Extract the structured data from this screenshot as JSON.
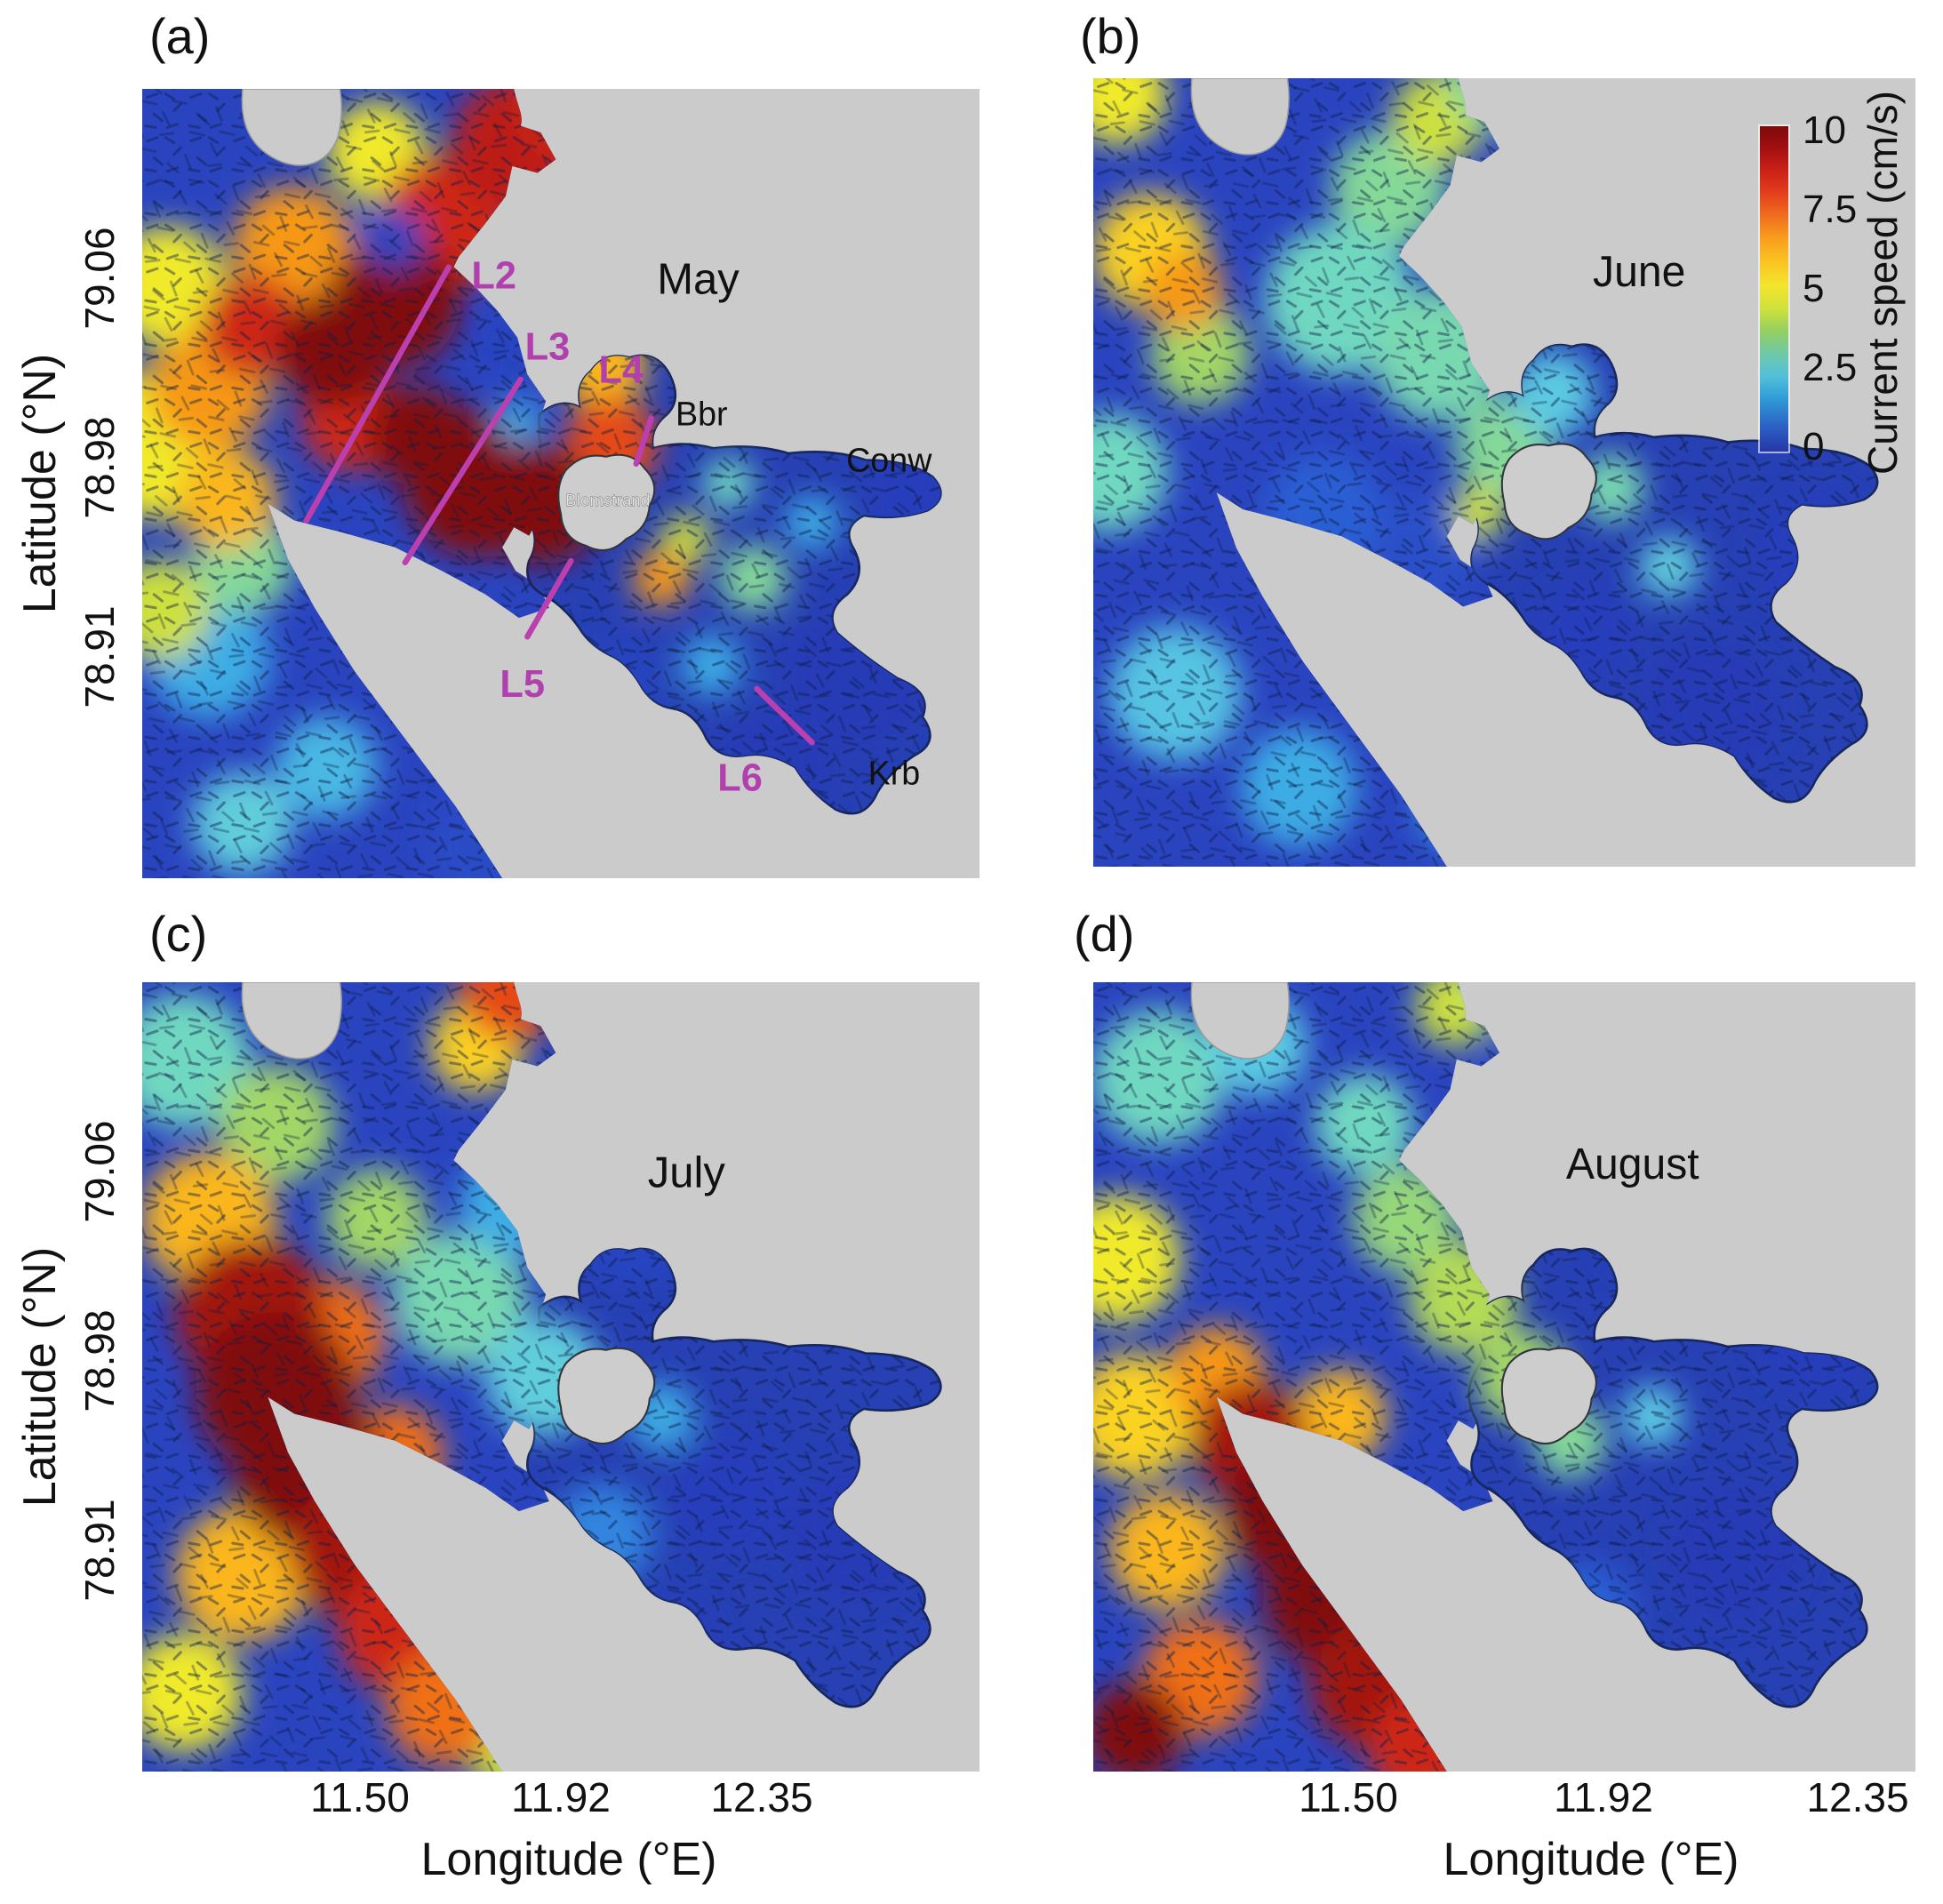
{
  "figure": {
    "panels": [
      {
        "tag": "(a)",
        "month": "May"
      },
      {
        "tag": "(b)",
        "month": "June"
      },
      {
        "tag": "(c)",
        "month": "July"
      },
      {
        "tag": "(d)",
        "month": "August"
      }
    ]
  },
  "axes": {
    "y_label": "Latitude (°N)",
    "y_ticks": [
      "79.06",
      "78.98",
      "78.91"
    ],
    "x_label": "Longitude (°E)",
    "x_ticks": [
      "11.50",
      "11.92",
      "12.35"
    ]
  },
  "colorbar": {
    "label": "Current speed (cm/s)",
    "ticks": [
      "10",
      "7.5",
      "5",
      "2.5",
      "0"
    ]
  },
  "annotations": {
    "transects": [
      "L2",
      "L3",
      "L4",
      "L5",
      "L6"
    ],
    "places": [
      "Bbr",
      "Conw",
      "Krb",
      "Blomstrand"
    ]
  },
  "chart_data": {
    "type": "heatmap",
    "subtype": "vector-current-speed-maps",
    "colormap": "jet",
    "value_label": "Current speed (cm/s)",
    "value_range": [
      0,
      10
    ],
    "colorbar_ticks": [
      10,
      7.5,
      5,
      2.5,
      0
    ],
    "x_axis": {
      "label": "Longitude (°E)",
      "ticks": [
        11.5,
        11.92,
        12.35
      ]
    },
    "y_axis": {
      "label": "Latitude (°N)",
      "ticks": [
        79.06,
        78.98,
        78.91
      ]
    },
    "legend_position": "top-right of panel (b)",
    "panels": [
      {
        "id": "a",
        "month": "May",
        "transects": [
          {
            "label": "L2",
            "x1": 0.366,
            "y1": 0.226,
            "x2": 0.196,
            "y2": 0.547,
            "lx": 0.42,
            "ly": 0.253
          },
          {
            "label": "L3",
            "x1": 0.452,
            "y1": 0.368,
            "x2": 0.314,
            "y2": 0.6,
            "lx": 0.484,
            "ly": 0.343
          },
          {
            "label": "L4",
            "x1": 0.608,
            "y1": 0.417,
            "x2": 0.59,
            "y2": 0.475,
            "lx": 0.572,
            "ly": 0.372
          },
          {
            "label": "L5",
            "x1": 0.512,
            "y1": 0.598,
            "x2": 0.46,
            "y2": 0.694,
            "lx": 0.454,
            "ly": 0.77
          },
          {
            "label": "L6",
            "x1": 0.734,
            "y1": 0.76,
            "x2": 0.8,
            "y2": 0.828,
            "lx": 0.714,
            "ly": 0.889
          }
        ],
        "places": [
          {
            "label": "Bbr",
            "x": 0.668,
            "y": 0.426,
            "kind": "place"
          },
          {
            "label": "Conw",
            "x": 0.892,
            "y": 0.485,
            "kind": "place"
          },
          {
            "label": "Krb",
            "x": 0.898,
            "y": 0.881,
            "kind": "place"
          },
          {
            "label": "Blomstrand",
            "x": 0.556,
            "y": 0.528,
            "kind": "island"
          }
        ],
        "hotspots": [
          {
            "x": 0.55,
            "y": 0.12,
            "r": 34,
            "v": 1
          },
          {
            "x": 0.48,
            "y": 0.28,
            "r": 26,
            "v": 1.2
          },
          {
            "x": 0.85,
            "y": 0.75,
            "r": 42,
            "v": 0.8
          },
          {
            "x": 0.75,
            "y": 0.87,
            "r": 36,
            "v": 0.8
          },
          {
            "x": 0.93,
            "y": 0.52,
            "r": 32,
            "v": 1
          },
          {
            "x": 0.42,
            "y": 0.96,
            "r": 40,
            "v": 1.4
          },
          {
            "x": 0.56,
            "y": 0.76,
            "r": 30,
            "v": 1.2
          },
          {
            "x": 0.08,
            "y": 0.72,
            "r": 36,
            "v": 3
          },
          {
            "x": 0.22,
            "y": 0.86,
            "r": 30,
            "v": 3.2
          },
          {
            "x": 0.12,
            "y": 0.93,
            "r": 30,
            "v": 3.6
          },
          {
            "x": 0.8,
            "y": 0.55,
            "r": 16,
            "v": 3
          },
          {
            "x": 0.68,
            "y": 0.73,
            "r": 18,
            "v": 3
          },
          {
            "x": 0.12,
            "y": 0.6,
            "r": 30,
            "v": 4.5
          },
          {
            "x": 0.73,
            "y": 0.62,
            "r": 20,
            "v": 4.5
          },
          {
            "x": 0.7,
            "y": 0.5,
            "r": 15,
            "v": 4
          },
          {
            "x": 0.6,
            "y": 0.18,
            "r": 22,
            "v": 4
          },
          {
            "x": 0.02,
            "y": 0.45,
            "r": 45,
            "v": 6
          },
          {
            "x": 0.03,
            "y": 0.25,
            "r": 36,
            "v": 6
          },
          {
            "x": 0.28,
            "y": 0.08,
            "r": 30,
            "v": 6
          },
          {
            "x": 0.57,
            "y": 0.25,
            "r": 26,
            "v": 5.5
          },
          {
            "x": 0.65,
            "y": 0.57,
            "r": 15,
            "v": 5.5
          },
          {
            "x": 0.02,
            "y": 0.66,
            "r": 30,
            "v": 5.5
          },
          {
            "x": 0.08,
            "y": 0.38,
            "r": 36,
            "v": 7.5
          },
          {
            "x": 0.18,
            "y": 0.2,
            "r": 36,
            "v": 7.5
          },
          {
            "x": 0.55,
            "y": 0.35,
            "r": 26,
            "v": 7
          },
          {
            "x": 0.62,
            "y": 0.62,
            "r": 17,
            "v": 7.5
          },
          {
            "x": 0.1,
            "y": 0.52,
            "r": 30,
            "v": 7
          },
          {
            "x": 0.36,
            "y": 0.17,
            "r": 40,
            "v": 9
          },
          {
            "x": 0.45,
            "y": 0.07,
            "r": 40,
            "v": 9.2
          },
          {
            "x": 0.52,
            "y": 0.02,
            "r": 34,
            "v": 9
          },
          {
            "x": 0.13,
            "y": 0.3,
            "r": 30,
            "v": 9
          },
          {
            "x": 0.56,
            "y": 0.45,
            "r": 28,
            "v": 8.5
          },
          {
            "x": 0.25,
            "y": 0.42,
            "r": 30,
            "v": 9
          },
          {
            "x": 0.3,
            "y": 0.27,
            "r": 40,
            "v": 10
          },
          {
            "x": 0.23,
            "y": 0.33,
            "r": 34,
            "v": 10
          },
          {
            "x": 0.4,
            "y": 0.5,
            "r": 44,
            "v": 10
          },
          {
            "x": 0.48,
            "y": 0.53,
            "r": 34,
            "v": 10
          },
          {
            "x": 0.33,
            "y": 0.44,
            "r": 30,
            "v": 10
          },
          {
            "x": 0.45,
            "y": 0.42,
            "r": 13,
            "v": 3
          },
          {
            "x": 0.3,
            "y": 0.19,
            "r": 18,
            "v": 1.2
          }
        ]
      },
      {
        "id": "b",
        "month": "June",
        "hotspots": [
          {
            "x": 0.55,
            "y": 0.15,
            "r": 36,
            "v": 1
          },
          {
            "x": 0.75,
            "y": 0.8,
            "r": 42,
            "v": 0.8
          },
          {
            "x": 0.88,
            "y": 0.6,
            "r": 36,
            "v": 1
          },
          {
            "x": 0.6,
            "y": 0.7,
            "r": 30,
            "v": 1
          },
          {
            "x": 0.4,
            "y": 0.6,
            "r": 35,
            "v": 1.5
          },
          {
            "x": 0.28,
            "y": 0.55,
            "r": 35,
            "v": 2
          },
          {
            "x": 0.02,
            "y": 0.5,
            "r": 35,
            "v": 4
          },
          {
            "x": 0.1,
            "y": 0.78,
            "r": 40,
            "v": 3.4
          },
          {
            "x": 0.25,
            "y": 0.9,
            "r": 35,
            "v": 3
          },
          {
            "x": 0.45,
            "y": 0.92,
            "r": 30,
            "v": 2.5
          },
          {
            "x": 0.36,
            "y": 0.14,
            "r": 35,
            "v": 4.5
          },
          {
            "x": 0.3,
            "y": 0.28,
            "r": 45,
            "v": 4
          },
          {
            "x": 0.42,
            "y": 0.35,
            "r": 40,
            "v": 4.2
          },
          {
            "x": 0.5,
            "y": 0.47,
            "r": 30,
            "v": 4.5
          },
          {
            "x": 0.56,
            "y": 0.4,
            "r": 25,
            "v": 3.5
          },
          {
            "x": 0.63,
            "y": 0.52,
            "r": 20,
            "v": 4.2
          },
          {
            "x": 0.7,
            "y": 0.62,
            "r": 18,
            "v": 3.6
          },
          {
            "x": 0.03,
            "y": 0.02,
            "r": 30,
            "v": 6
          },
          {
            "x": 0.42,
            "y": 0.05,
            "r": 28,
            "v": 5.5
          },
          {
            "x": 0.48,
            "y": 0.01,
            "r": 24,
            "v": 4.5
          },
          {
            "x": 0.07,
            "y": 0.22,
            "r": 35,
            "v": 6.5
          },
          {
            "x": 0.13,
            "y": 0.35,
            "r": 30,
            "v": 5
          },
          {
            "x": 0.11,
            "y": 0.27,
            "r": 24,
            "v": 7.5
          },
          {
            "x": 0.47,
            "y": 0.55,
            "r": 16,
            "v": 5.5
          }
        ]
      },
      {
        "id": "c",
        "month": "July",
        "hotspots": [
          {
            "x": 0.58,
            "y": 0.3,
            "r": 40,
            "v": 1.2
          },
          {
            "x": 0.7,
            "y": 0.65,
            "r": 36,
            "v": 1
          },
          {
            "x": 0.85,
            "y": 0.7,
            "r": 40,
            "v": 0.8
          },
          {
            "x": 0.55,
            "y": 0.7,
            "r": 30,
            "v": 2.5
          },
          {
            "x": 0.62,
            "y": 0.85,
            "r": 35,
            "v": 1
          },
          {
            "x": 0.05,
            "y": 0.1,
            "r": 40,
            "v": 4
          },
          {
            "x": 0.16,
            "y": 0.18,
            "r": 35,
            "v": 5
          },
          {
            "x": 0.28,
            "y": 0.3,
            "r": 30,
            "v": 5
          },
          {
            "x": 0.38,
            "y": 0.4,
            "r": 40,
            "v": 4.2
          },
          {
            "x": 0.48,
            "y": 0.5,
            "r": 35,
            "v": 3.6
          },
          {
            "x": 0.44,
            "y": 0.28,
            "r": 30,
            "v": 3
          },
          {
            "x": 0.62,
            "y": 0.55,
            "r": 20,
            "v": 3
          },
          {
            "x": 0.45,
            "y": 0.97,
            "r": 30,
            "v": 5.5
          },
          {
            "x": 0.05,
            "y": 0.9,
            "r": 35,
            "v": 6
          },
          {
            "x": 0.08,
            "y": 0.3,
            "r": 40,
            "v": 7
          },
          {
            "x": 0.12,
            "y": 0.75,
            "r": 40,
            "v": 7
          },
          {
            "x": 0.22,
            "y": 0.45,
            "r": 35,
            "v": 8
          },
          {
            "x": 0.3,
            "y": 0.6,
            "r": 30,
            "v": 8
          },
          {
            "x": 0.4,
            "y": 0.08,
            "r": 28,
            "v": 6.5
          },
          {
            "x": 0.44,
            "y": 0.01,
            "r": 30,
            "v": 8.5
          },
          {
            "x": 0.13,
            "y": 0.42,
            "r": 45,
            "v": 9.5
          },
          {
            "x": 0.16,
            "y": 0.52,
            "r": 48,
            "v": 10
          },
          {
            "x": 0.2,
            "y": 0.62,
            "r": 46,
            "v": 10
          },
          {
            "x": 0.26,
            "y": 0.72,
            "r": 42,
            "v": 9.5
          },
          {
            "x": 0.31,
            "y": 0.82,
            "r": 38,
            "v": 9
          },
          {
            "x": 0.36,
            "y": 0.92,
            "r": 34,
            "v": 8
          }
        ]
      },
      {
        "id": "d",
        "month": "August",
        "hotspots": [
          {
            "x": 0.55,
            "y": 0.15,
            "r": 40,
            "v": 1.2
          },
          {
            "x": 0.78,
            "y": 0.72,
            "r": 40,
            "v": 0.8
          },
          {
            "x": 0.88,
            "y": 0.45,
            "r": 35,
            "v": 1
          },
          {
            "x": 0.6,
            "y": 0.8,
            "r": 30,
            "v": 2
          },
          {
            "x": 0.68,
            "y": 0.3,
            "r": 35,
            "v": 1
          },
          {
            "x": 0.08,
            "y": 0.12,
            "r": 40,
            "v": 4
          },
          {
            "x": 0.2,
            "y": 0.08,
            "r": 30,
            "v": 3.5
          },
          {
            "x": 0.44,
            "y": 0.03,
            "r": 24,
            "v": 5.5
          },
          {
            "x": 0.5,
            "y": 0.01,
            "r": 20,
            "v": 4.5
          },
          {
            "x": 0.33,
            "y": 0.18,
            "r": 30,
            "v": 4
          },
          {
            "x": 0.38,
            "y": 0.3,
            "r": 32,
            "v": 4.8
          },
          {
            "x": 0.45,
            "y": 0.4,
            "r": 33,
            "v": 5.2
          },
          {
            "x": 0.52,
            "y": 0.5,
            "r": 28,
            "v": 5
          },
          {
            "x": 0.58,
            "y": 0.58,
            "r": 22,
            "v": 4.5
          },
          {
            "x": 0.68,
            "y": 0.55,
            "r": 18,
            "v": 3.5
          },
          {
            "x": 0.03,
            "y": 0.35,
            "r": 38,
            "v": 6
          },
          {
            "x": 0.05,
            "y": 0.55,
            "r": 38,
            "v": 6.5
          },
          {
            "x": 0.09,
            "y": 0.72,
            "r": 35,
            "v": 7
          },
          {
            "x": 0.13,
            "y": 0.88,
            "r": 35,
            "v": 8
          },
          {
            "x": 0.15,
            "y": 0.5,
            "r": 30,
            "v": 7.5
          },
          {
            "x": 0.3,
            "y": 0.55,
            "r": 28,
            "v": 7
          },
          {
            "x": 0.19,
            "y": 0.58,
            "r": 35,
            "v": 9.5
          },
          {
            "x": 0.24,
            "y": 0.67,
            "r": 40,
            "v": 10
          },
          {
            "x": 0.29,
            "y": 0.78,
            "r": 42,
            "v": 10
          },
          {
            "x": 0.34,
            "y": 0.89,
            "r": 38,
            "v": 9.5
          },
          {
            "x": 0.4,
            "y": 0.97,
            "r": 33,
            "v": 9
          },
          {
            "x": 0.05,
            "y": 0.95,
            "r": 30,
            "v": 10
          }
        ]
      }
    ]
  }
}
